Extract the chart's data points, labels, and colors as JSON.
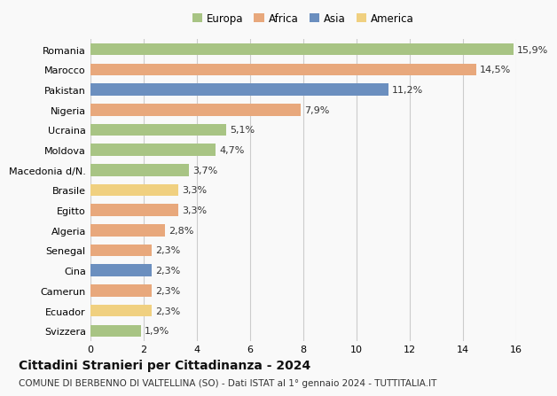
{
  "categories": [
    "Romania",
    "Marocco",
    "Pakistan",
    "Nigeria",
    "Ucraina",
    "Moldova",
    "Macedonia d/N.",
    "Brasile",
    "Egitto",
    "Algeria",
    "Senegal",
    "Cina",
    "Camerun",
    "Ecuador",
    "Svizzera"
  ],
  "values": [
    15.9,
    14.5,
    11.2,
    7.9,
    5.1,
    4.7,
    3.7,
    3.3,
    3.3,
    2.8,
    2.3,
    2.3,
    2.3,
    2.3,
    1.9
  ],
  "labels": [
    "15,9%",
    "14,5%",
    "11,2%",
    "7,9%",
    "5,1%",
    "4,7%",
    "3,7%",
    "3,3%",
    "3,3%",
    "2,8%",
    "2,3%",
    "2,3%",
    "2,3%",
    "2,3%",
    "1,9%"
  ],
  "continents": [
    "Europa",
    "Africa",
    "Asia",
    "Africa",
    "Europa",
    "Europa",
    "Europa",
    "America",
    "Africa",
    "Africa",
    "Africa",
    "Asia",
    "Africa",
    "America",
    "Europa"
  ],
  "colors": {
    "Europa": "#a8c484",
    "Africa": "#e8a87c",
    "Asia": "#6b8fbf",
    "America": "#f0d080"
  },
  "legend_order": [
    "Europa",
    "Africa",
    "Asia",
    "America"
  ],
  "xlim": [
    0,
    16
  ],
  "xticks": [
    0,
    2,
    4,
    6,
    8,
    10,
    12,
    14,
    16
  ],
  "title": "Cittadini Stranieri per Cittadinanza - 2024",
  "subtitle": "COMUNE DI BERBENNO DI VALTELLINA (SO) - Dati ISTAT al 1° gennaio 2024 - TUTTITALIA.IT",
  "bg_color": "#f9f9f9",
  "grid_color": "#cccccc",
  "bar_height": 0.6,
  "title_fontsize": 10,
  "subtitle_fontsize": 7.5,
  "label_fontsize": 8,
  "tick_fontsize": 8,
  "legend_fontsize": 8.5
}
